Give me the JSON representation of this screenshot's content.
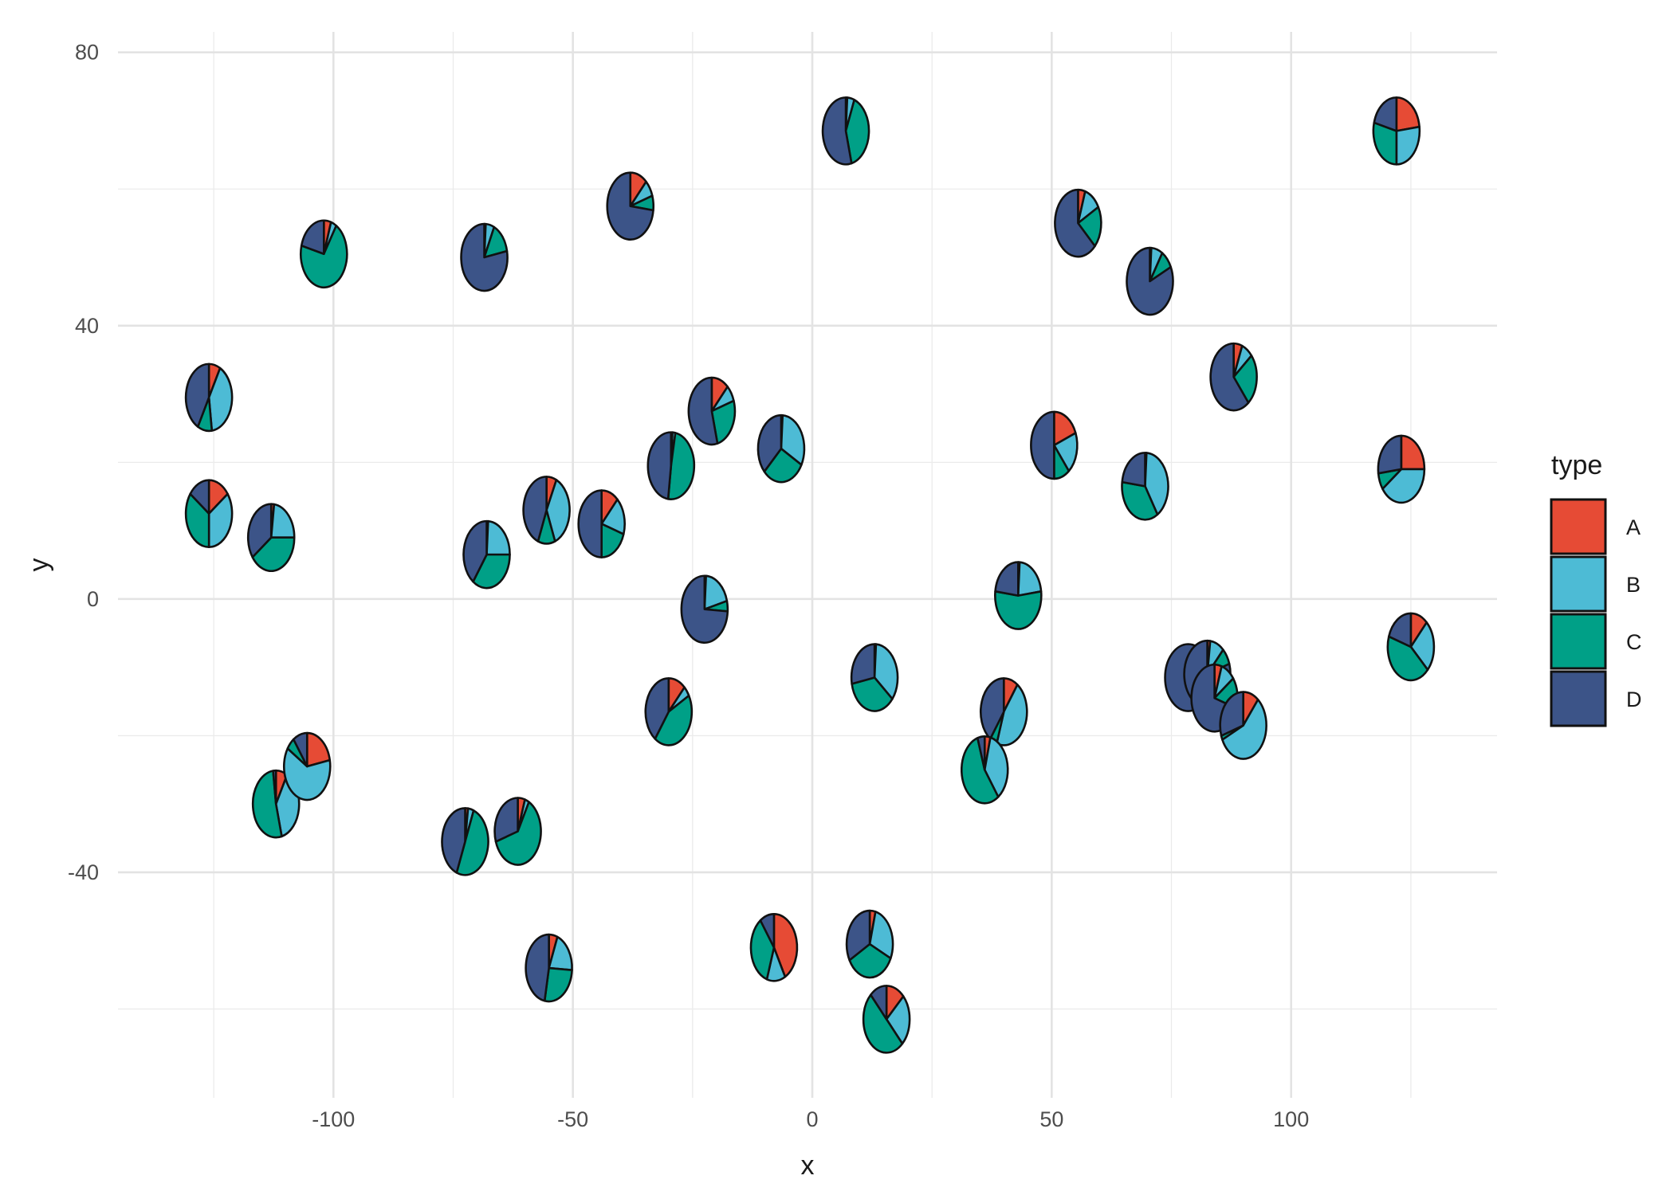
{
  "chart_data": {
    "type": "scatter",
    "subtype": "scatter-pie",
    "xlabel": "x",
    "ylabel": "y",
    "xlim": [
      -145,
      143
    ],
    "ylim": [
      -73,
      83
    ],
    "x_ticks": [
      -100,
      -50,
      0,
      50,
      100
    ],
    "y_ticks": [
      -40,
      0,
      40,
      80
    ],
    "grid": true,
    "legend": {
      "title": "type",
      "position": "right",
      "entries": [
        {
          "label": "A",
          "color": "#E64B35"
        },
        {
          "label": "B",
          "color": "#4DBBD5"
        },
        {
          "label": "C",
          "color": "#00A087"
        },
        {
          "label": "D",
          "color": "#3C5488"
        }
      ]
    },
    "points": [
      {
        "x": -126,
        "y": 29.5,
        "values": {
          "A": 8,
          "B": 40,
          "C": 10,
          "D": 42
        }
      },
      {
        "x": -126,
        "y": 12.5,
        "values": {
          "A": 15,
          "B": 35,
          "C": 35,
          "D": 15
        }
      },
      {
        "x": -113,
        "y": 9,
        "values": {
          "A": 2,
          "B": 23,
          "C": 40,
          "D": 35
        }
      },
      {
        "x": -102,
        "y": 50.5,
        "values": {
          "A": 5,
          "B": 4,
          "C": 70,
          "D": 21
        }
      },
      {
        "x": -68.5,
        "y": 50,
        "values": {
          "A": 1,
          "B": 6,
          "C": 15,
          "D": 78
        }
      },
      {
        "x": -68,
        "y": 6.5,
        "values": {
          "A": 1,
          "B": 24,
          "C": 35,
          "D": 40
        }
      },
      {
        "x": -55.5,
        "y": 13,
        "values": {
          "A": 7,
          "B": 37,
          "C": 12,
          "D": 44
        }
      },
      {
        "x": -44,
        "y": 11,
        "values": {
          "A": 12,
          "B": 18,
          "C": 20,
          "D": 50
        }
      },
      {
        "x": -38,
        "y": 57.5,
        "values": {
          "A": 12,
          "B": 8,
          "C": 7,
          "D": 73
        }
      },
      {
        "x": -29.5,
        "y": 19.5,
        "values": {
          "A": 1,
          "B": 2,
          "C": 49,
          "D": 48
        }
      },
      {
        "x": -21,
        "y": 27.5,
        "values": {
          "A": 12,
          "B": 8,
          "C": 26,
          "D": 54
        }
      },
      {
        "x": -22.5,
        "y": -1.5,
        "values": {
          "A": 1,
          "B": 20,
          "C": 5,
          "D": 74
        }
      },
      {
        "x": -6.5,
        "y": 22,
        "values": {
          "A": 1,
          "B": 32,
          "C": 30,
          "D": 37
        }
      },
      {
        "x": 7,
        "y": 68.5,
        "values": {
          "A": 1,
          "B": 5,
          "C": 40,
          "D": 54
        }
      },
      {
        "x": 13,
        "y": -11.5,
        "values": {
          "A": 1,
          "B": 35,
          "C": 36,
          "D": 28
        }
      },
      {
        "x": 40,
        "y": -16.5,
        "values": {
          "A": 10,
          "B": 45,
          "C": 5,
          "D": 40
        }
      },
      {
        "x": 43,
        "y": 0.5,
        "values": {
          "A": 1,
          "B": 22,
          "C": 54,
          "D": 23
        }
      },
      {
        "x": 50.5,
        "y": 22.5,
        "values": {
          "A": 19,
          "B": 20,
          "C": 11,
          "D": 50
        }
      },
      {
        "x": 55.5,
        "y": 55,
        "values": {
          "A": 5,
          "B": 12,
          "C": 20,
          "D": 63
        }
      },
      {
        "x": 69.5,
        "y": 16.5,
        "values": {
          "A": 1,
          "B": 40,
          "C": 36,
          "D": 23
        }
      },
      {
        "x": 70.5,
        "y": 46.5,
        "values": {
          "A": 1,
          "B": 8,
          "C": 9,
          "D": 82
        }
      },
      {
        "x": 88,
        "y": 32.5,
        "values": {
          "A": 6,
          "B": 8,
          "C": 25,
          "D": 61
        }
      },
      {
        "x": 122,
        "y": 68.5,
        "values": {
          "A": 23,
          "B": 27,
          "C": 29,
          "D": 21
        }
      },
      {
        "x": 123,
        "y": 19,
        "values": {
          "A": 25,
          "B": 40,
          "C": 8,
          "D": 27
        }
      },
      {
        "x": 125,
        "y": -7,
        "values": {
          "A": 12,
          "B": 25,
          "C": 43,
          "D": 20
        }
      },
      {
        "x": 78.5,
        "y": -11.5,
        "values": {
          "A": 0,
          "B": 0,
          "C": 0,
          "D": 100
        }
      },
      {
        "x": 82.5,
        "y": -11,
        "values": {
          "A": 2,
          "B": 10,
          "C": 8,
          "D": 80
        }
      },
      {
        "x": 84,
        "y": -14.5,
        "values": {
          "A": 5,
          "B": 10,
          "C": 15,
          "D": 70
        }
      },
      {
        "x": 90,
        "y": -18.5,
        "values": {
          "A": 11,
          "B": 57,
          "C": 2,
          "D": 30
        }
      },
      {
        "x": 36,
        "y": -25,
        "values": {
          "A": 4,
          "B": 36,
          "C": 55,
          "D": 5
        }
      },
      {
        "x": 12,
        "y": -50.5,
        "values": {
          "A": 4,
          "B": 28,
          "C": 35,
          "D": 33
        }
      },
      {
        "x": 15.5,
        "y": -61.5,
        "values": {
          "A": 13,
          "B": 25,
          "C": 50,
          "D": 12
        }
      },
      {
        "x": -8,
        "y": -51,
        "values": {
          "A": 42,
          "B": 13,
          "C": 35,
          "D": 10
        }
      },
      {
        "x": -55,
        "y": -54,
        "values": {
          "A": 6,
          "B": 20,
          "C": 27,
          "D": 47
        }
      },
      {
        "x": -61.5,
        "y": -34,
        "values": {
          "A": 5,
          "B": 3,
          "C": 62,
          "D": 30
        }
      },
      {
        "x": -72.5,
        "y": -35.5,
        "values": {
          "A": 2,
          "B": 4,
          "C": 50,
          "D": 44
        }
      },
      {
        "x": -30,
        "y": -16.5,
        "values": {
          "A": 12,
          "B": 5,
          "C": 43,
          "D": 40
        }
      },
      {
        "x": -112,
        "y": -30,
        "values": {
          "A": 8,
          "B": 38,
          "C": 52,
          "D": 2
        }
      },
      {
        "x": -105.5,
        "y": -24.5,
        "values": {
          "A": 22,
          "B": 62,
          "C": 6,
          "D": 10
        }
      }
    ]
  }
}
